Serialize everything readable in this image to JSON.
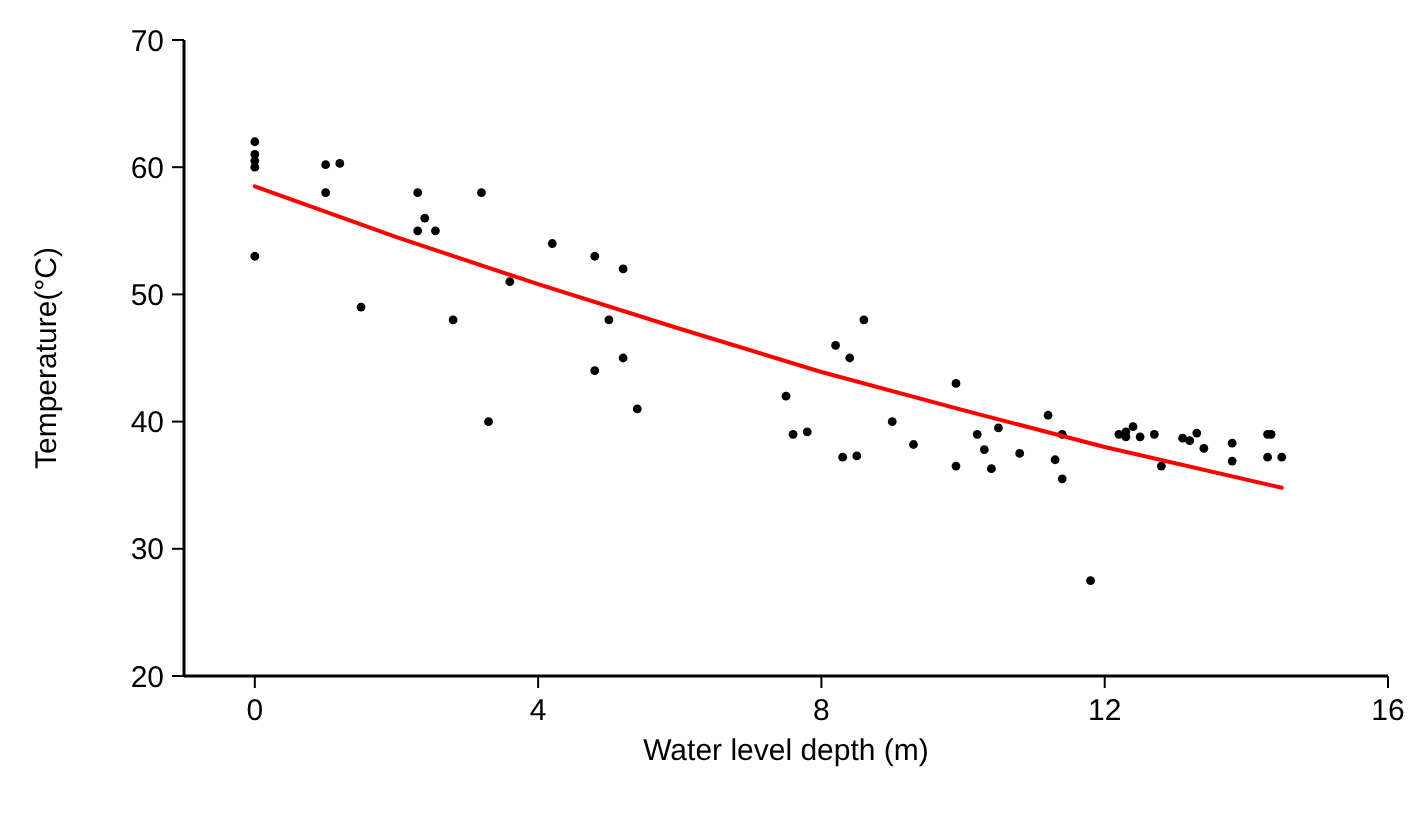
{
  "chart_data": {
    "type": "scatter",
    "xlabel": "Water level depth (m)",
    "ylabel": "Temperature(°C)",
    "xlim": [
      -1,
      16
    ],
    "xticks": [
      0,
      4,
      8,
      12,
      16
    ],
    "ylim": [
      20,
      70
    ],
    "yticks": [
      20,
      30,
      40,
      50,
      60,
      70
    ],
    "grid": false,
    "marker": "circle",
    "series": [
      {
        "color": "#000000",
        "x": [
          0,
          0,
          0,
          0,
          0,
          1,
          1.2,
          1,
          1.5,
          2.3,
          2.3,
          2.4,
          2.55,
          2.8,
          3.2,
          3.3,
          3.6,
          4.2,
          4.8,
          4.8,
          5,
          5.2,
          5.2,
          5.4,
          7.5,
          7.6,
          7.8,
          8.2,
          8.4,
          8.6,
          8.3,
          8.5,
          9,
          9.3,
          9.9,
          9.9,
          10.2,
          10.3,
          10.5,
          10.4,
          10.8,
          11.2,
          11.3,
          11.4,
          11.4,
          11.8,
          12.2,
          12.3,
          12.4,
          12.5,
          12.3,
          12.7,
          12.8,
          13.1,
          13.3,
          13.4,
          13.2,
          13.8,
          13.8,
          14.3,
          14.35,
          14.3,
          14.5
        ],
        "values": [
          62,
          61,
          60.5,
          60,
          53,
          60.2,
          60.3,
          58,
          49,
          58,
          55,
          56,
          55,
          48,
          58,
          40,
          51,
          54,
          53,
          44,
          48,
          52,
          45,
          41,
          42,
          39,
          39.2,
          46,
          45,
          48,
          37.2,
          37.3,
          40,
          38.2,
          43,
          36.5,
          39,
          37.8,
          39.5,
          36.3,
          37.5,
          40.5,
          37,
          39,
          35.5,
          27.5,
          39,
          39.2,
          39.6,
          38.8,
          38.8,
          39,
          36.5,
          38.7,
          39.1,
          37.9,
          38.5,
          38.3,
          36.9,
          39,
          39,
          37.2,
          37.2
        ]
      },
      {
        "type": "line",
        "color": "#ff0000",
        "marker": "none",
        "line_style": "solid",
        "x": [
          0,
          2,
          4,
          6,
          8,
          10,
          12,
          14.5
        ],
        "values": [
          58.5,
          54.5,
          50.8,
          47.3,
          43.9,
          40.9,
          38.0,
          34.8
        ]
      }
    ]
  }
}
